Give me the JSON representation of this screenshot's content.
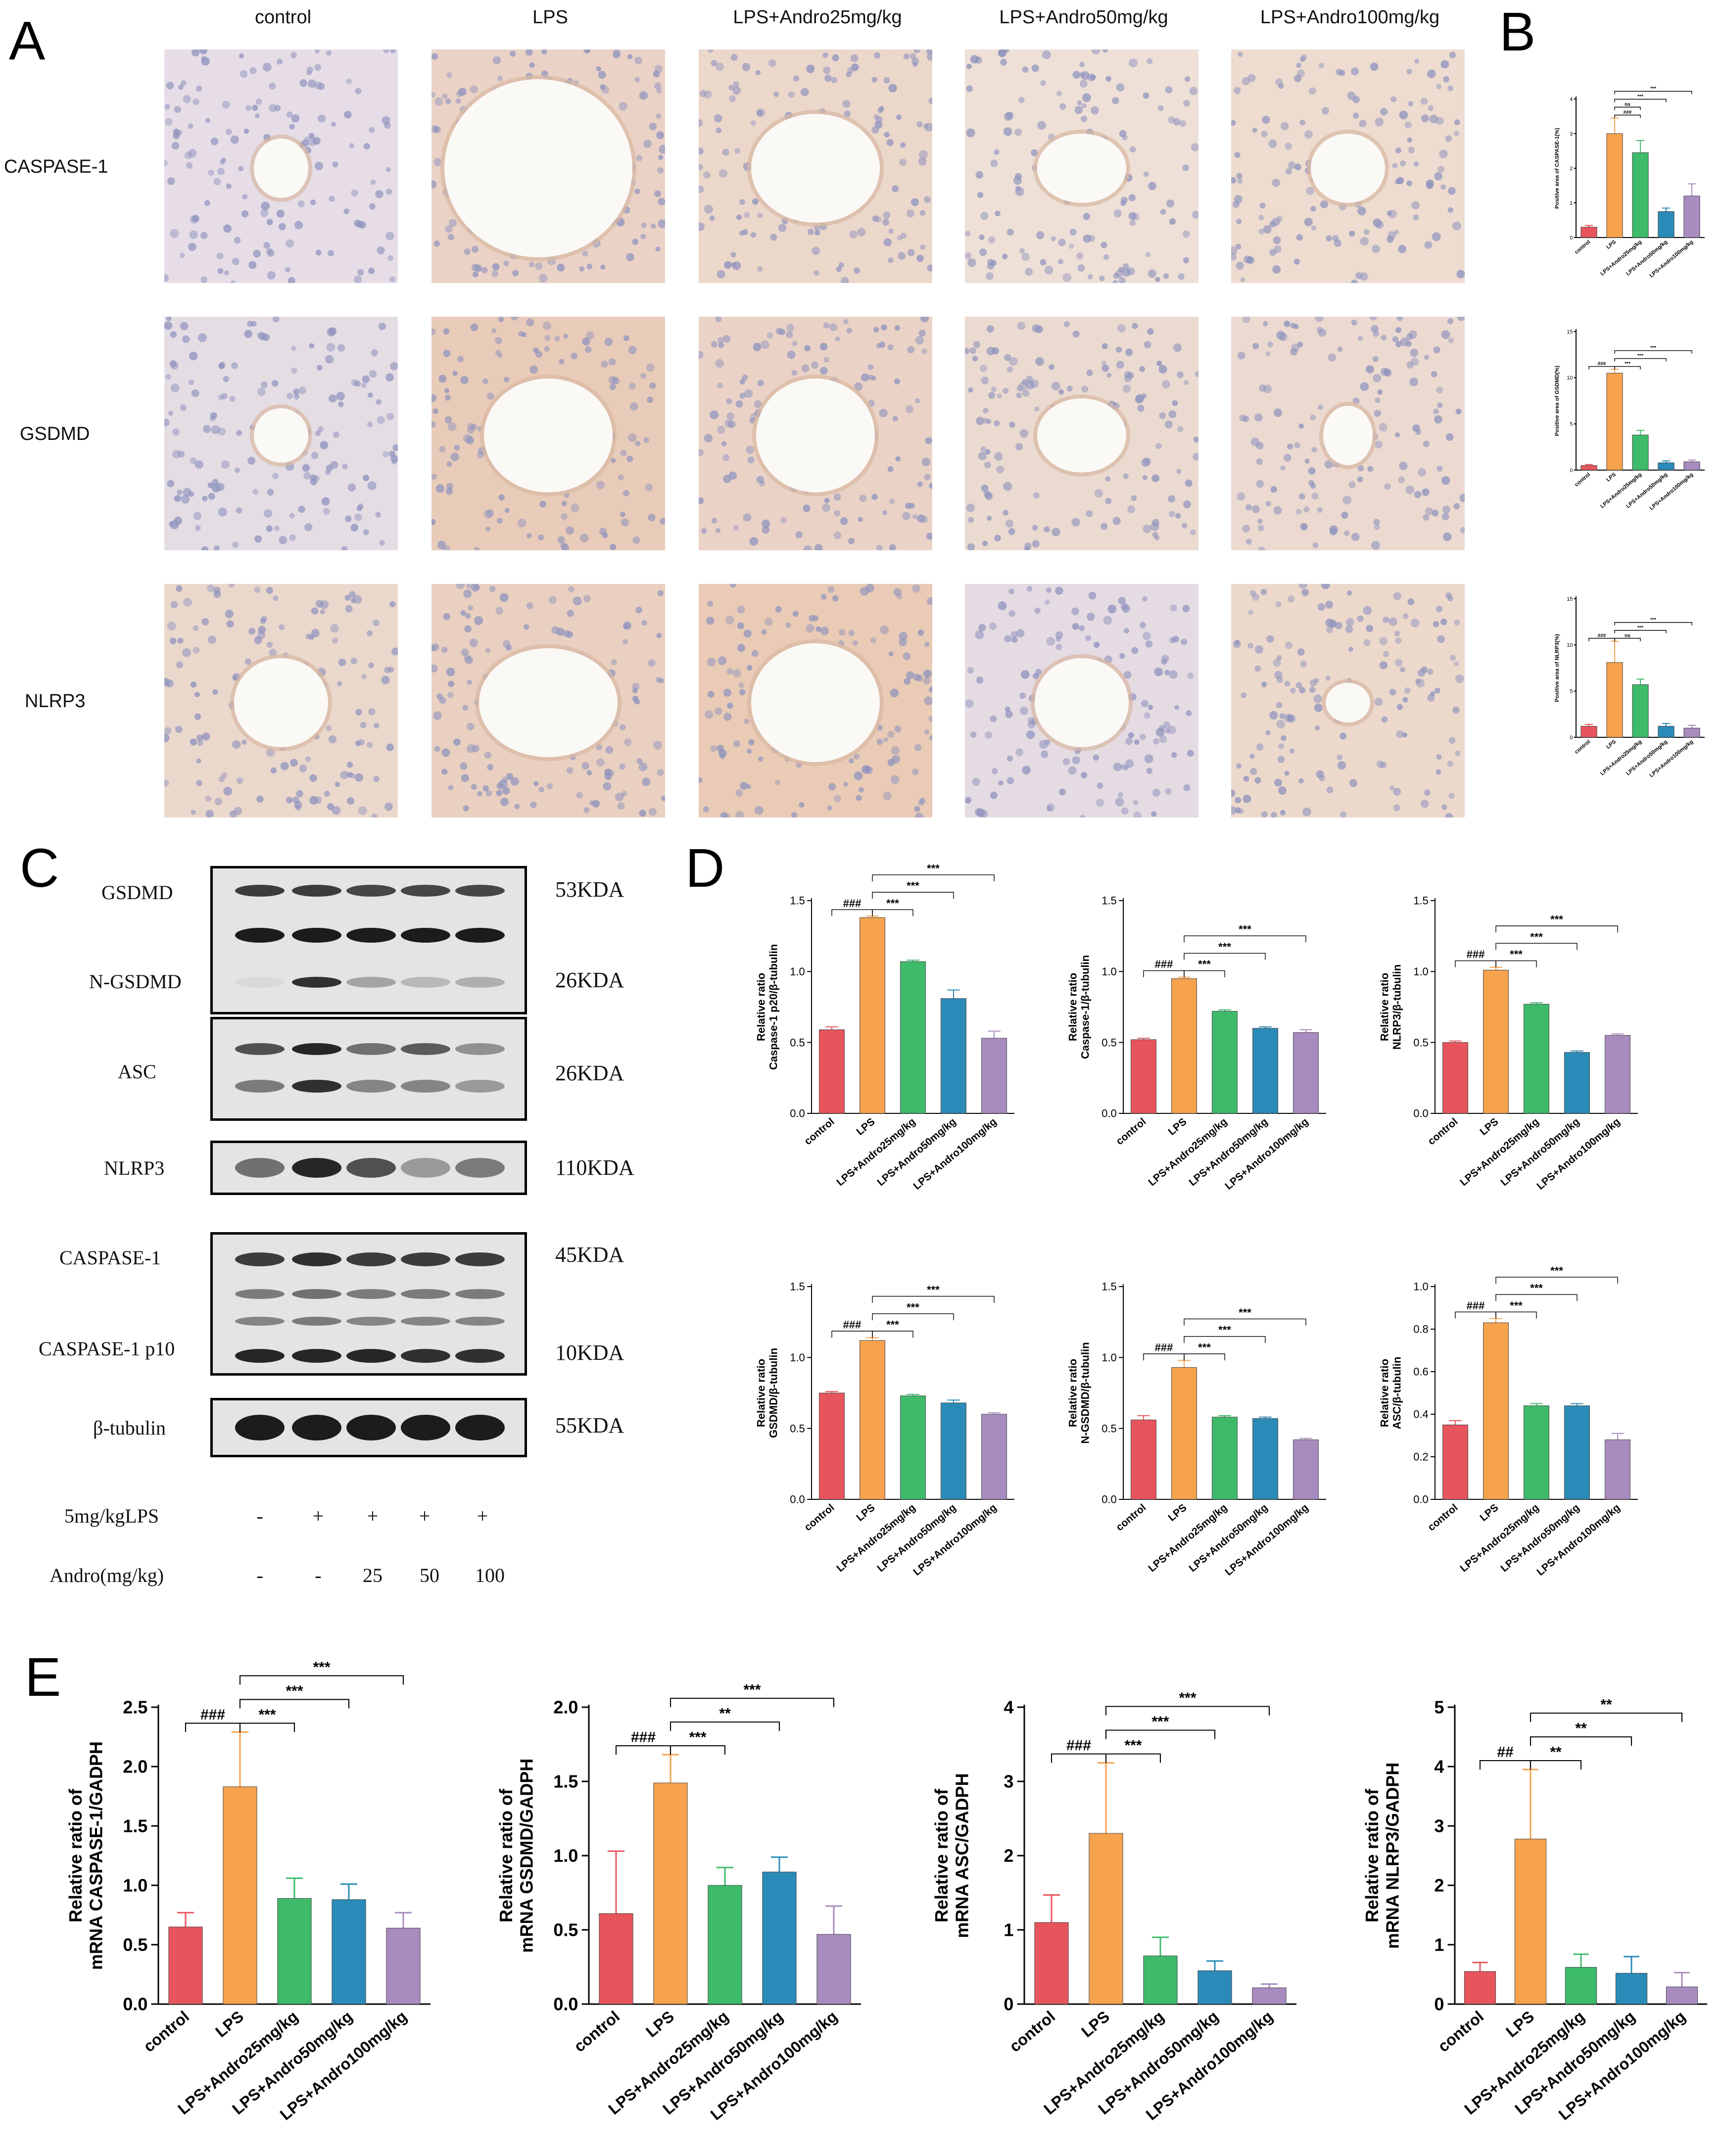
{
  "panels": {
    "A": "A",
    "B": "B",
    "C": "C",
    "D": "D",
    "E": "E"
  },
  "ihc": {
    "columns": [
      "control",
      "LPS",
      "LPS+Andro25mg/kg",
      "LPS+Andro50mg/kg",
      "LPS+Andro100mg/kg"
    ],
    "rows": [
      "CASPASE-1",
      "GSDMD",
      "NLRP3"
    ]
  },
  "western": {
    "labels": [
      "GSDMD",
      "N-GSDMD",
      "ASC",
      "NLRP3",
      "CASPASE-1",
      "CASPASE-1 p10",
      "β-tubulin"
    ],
    "sizes": [
      "53KDA",
      "26KDA",
      "26KDA",
      "110KDA",
      "45KDA",
      "10KDA",
      "55KDA"
    ],
    "condition_rows": [
      {
        "label": "5mg/kgLPS",
        "values": [
          "-",
          "+",
          "+",
          "+",
          "+"
        ]
      },
      {
        "label": "Andro(mg/kg)",
        "values": [
          "-",
          "-",
          "25",
          "50",
          "100"
        ]
      }
    ]
  },
  "colors": {
    "control": "#e8545c",
    "lps": "#f7a24d",
    "andro25": "#3dbb6a",
    "andro50": "#2a8bb8",
    "andro100": "#a88bbf"
  },
  "chart_data": [
    {
      "id": "B1",
      "type": "bar",
      "categories": [
        "control",
        "LPS",
        "LPS+Andro25mg/kg",
        "LPS+Andro50mg/kg",
        "LPS+Andro100mg/kg"
      ],
      "values": [
        0.3,
        3.0,
        2.45,
        0.75,
        1.2
      ],
      "errors": [
        0.05,
        0.45,
        0.35,
        0.1,
        0.35
      ],
      "ylabel": "Positive area of CASPASE-1(%)",
      "ylim": [
        0,
        4
      ],
      "yticks": [
        0,
        1,
        2,
        3,
        4
      ],
      "annotations": [
        {
          "from": 1,
          "to": 2,
          "text": "###"
        },
        {
          "from": 1,
          "to": 2,
          "text": "ns"
        },
        {
          "from": 1,
          "to": 3,
          "text": "***"
        },
        {
          "from": 1,
          "to": 4,
          "text": "***"
        }
      ]
    },
    {
      "id": "B2",
      "type": "bar",
      "categories": [
        "control",
        "LPS",
        "LPS+Andro25mg/kg",
        "LPS+Andro50mg/kg",
        "LPS+Andro100mg/kg"
      ],
      "values": [
        0.5,
        10.5,
        3.8,
        0.8,
        0.9
      ],
      "errors": [
        0.1,
        0.4,
        0.5,
        0.2,
        0.2
      ],
      "ylabel": "Positive area of GSDMD(%)",
      "ylim": [
        0,
        15
      ],
      "yticks": [
        0,
        5,
        10,
        15
      ],
      "annotations": [
        {
          "from": 0,
          "to": 1,
          "text": "###"
        },
        {
          "from": 1,
          "to": 2,
          "text": "***"
        },
        {
          "from": 1,
          "to": 3,
          "text": "***"
        },
        {
          "from": 1,
          "to": 4,
          "text": "***"
        }
      ]
    },
    {
      "id": "B3",
      "type": "bar",
      "categories": [
        "control",
        "LPS",
        "LPS+Andro25mg/kg",
        "LPS+Andro50mg/kg",
        "LPS+Andro100mg/kg"
      ],
      "values": [
        1.2,
        8.1,
        5.7,
        1.2,
        1.0
      ],
      "errors": [
        0.2,
        2.3,
        0.6,
        0.3,
        0.3
      ],
      "ylabel": "Positive area of NLRP3(%)",
      "ylim": [
        0,
        15
      ],
      "yticks": [
        0,
        5,
        10,
        15
      ],
      "annotations": [
        {
          "from": 0,
          "to": 1,
          "text": "###"
        },
        {
          "from": 1,
          "to": 2,
          "text": "ns"
        },
        {
          "from": 1,
          "to": 3,
          "text": "***"
        },
        {
          "from": 1,
          "to": 4,
          "text": "***"
        }
      ]
    },
    {
      "id": "D1",
      "type": "bar",
      "categories": [
        "control",
        "LPS",
        "LPS+Andro25mg/kg",
        "LPS+Andro50mg/kg",
        "LPS+Andro100mg/kg"
      ],
      "values": [
        0.59,
        1.38,
        1.07,
        0.81,
        0.53
      ],
      "errors": [
        0.02,
        0.01,
        0.01,
        0.06,
        0.05
      ],
      "ylabel": "Relative ratio\nCaspase-1 p20/β-tubulin",
      "ylim": [
        0,
        1.5
      ],
      "yticks": [
        0,
        0.5,
        1.0,
        1.5
      ],
      "annotations": [
        {
          "from": 0,
          "to": 1,
          "text": "###"
        },
        {
          "from": 1,
          "to": 2,
          "text": "***"
        },
        {
          "from": 1,
          "to": 3,
          "text": "***"
        },
        {
          "from": 1,
          "to": 4,
          "text": "***"
        }
      ]
    },
    {
      "id": "D2",
      "type": "bar",
      "categories": [
        "control",
        "LPS",
        "LPS+Andro25mg/kg",
        "LPS+Andro50mg/kg",
        "LPS+Andro100mg/kg"
      ],
      "values": [
        0.52,
        0.95,
        0.72,
        0.6,
        0.57
      ],
      "errors": [
        0.01,
        0.01,
        0.01,
        0.01,
        0.02
      ],
      "ylabel": "Relative ratio\nCaspase-1/β-tubulin",
      "ylim": [
        0,
        1.5
      ],
      "yticks": [
        0,
        0.5,
        1.0,
        1.5
      ],
      "annotations": [
        {
          "from": 0,
          "to": 1,
          "text": "###"
        },
        {
          "from": 1,
          "to": 2,
          "text": "***"
        },
        {
          "from": 1,
          "to": 3,
          "text": "***"
        },
        {
          "from": 1,
          "to": 4,
          "text": "***"
        }
      ]
    },
    {
      "id": "D3",
      "type": "bar",
      "categories": [
        "control",
        "LPS",
        "LPS+Andro25mg/kg",
        "LPS+Andro50mg/kg",
        "LPS+Andro100mg/kg"
      ],
      "values": [
        0.5,
        1.01,
        0.77,
        0.43,
        0.55
      ],
      "errors": [
        0.01,
        0.02,
        0.01,
        0.01,
        0.01
      ],
      "ylabel": "Relative ratio\nNLRP3/β-tubulin",
      "ylim": [
        0,
        1.5
      ],
      "yticks": [
        0,
        0.5,
        1.0,
        1.5
      ],
      "annotations": [
        {
          "from": 0,
          "to": 1,
          "text": "###"
        },
        {
          "from": 1,
          "to": 2,
          "text": "***"
        },
        {
          "from": 1,
          "to": 3,
          "text": "***"
        },
        {
          "from": 1,
          "to": 4,
          "text": "***"
        }
      ]
    },
    {
      "id": "D4",
      "type": "bar",
      "categories": [
        "control",
        "LPS",
        "LPS+Andro25mg/kg",
        "LPS+Andro50mg/kg",
        "LPS+Andro100mg/kg"
      ],
      "values": [
        0.75,
        1.12,
        0.73,
        0.68,
        0.6
      ],
      "errors": [
        0.01,
        0.02,
        0.01,
        0.02,
        0.01
      ],
      "ylabel": "Relative ratio\nGSDMD/β-tubulin",
      "ylim": [
        0,
        1.5
      ],
      "yticks": [
        0,
        0.5,
        1.0,
        1.5
      ],
      "annotations": [
        {
          "from": 0,
          "to": 1,
          "text": "###"
        },
        {
          "from": 1,
          "to": 2,
          "text": "***"
        },
        {
          "from": 1,
          "to": 3,
          "text": "***"
        },
        {
          "from": 1,
          "to": 4,
          "text": "***"
        }
      ]
    },
    {
      "id": "D5",
      "type": "bar",
      "categories": [
        "control",
        "LPS",
        "LPS+Andro25mg/kg",
        "LPS+Andro50mg/kg",
        "LPS+Andro100mg/kg"
      ],
      "values": [
        0.56,
        0.93,
        0.58,
        0.57,
        0.42
      ],
      "errors": [
        0.03,
        0.05,
        0.01,
        0.01,
        0.01
      ],
      "ylabel": "Relative ratio\nN-GSDMD/β-tubulin",
      "ylim": [
        0,
        1.5
      ],
      "yticks": [
        0,
        0.5,
        1.0,
        1.5
      ],
      "annotations": [
        {
          "from": 0,
          "to": 1,
          "text": "###"
        },
        {
          "from": 1,
          "to": 2,
          "text": "***"
        },
        {
          "from": 1,
          "to": 3,
          "text": "***"
        },
        {
          "from": 1,
          "to": 4,
          "text": "***"
        }
      ]
    },
    {
      "id": "D6",
      "type": "bar",
      "categories": [
        "control",
        "LPS",
        "LPS+Andro25mg/kg",
        "LPS+Andro50mg/kg",
        "LPS+Andro100mg/kg"
      ],
      "values": [
        0.35,
        0.83,
        0.44,
        0.44,
        0.28
      ],
      "errors": [
        0.02,
        0.02,
        0.01,
        0.01,
        0.03
      ],
      "ylabel": "Relative ratio\nASC/β-tubulin",
      "ylim": [
        0,
        1.0
      ],
      "yticks": [
        0,
        0.2,
        0.4,
        0.6,
        0.8,
        1.0
      ],
      "annotations": [
        {
          "from": 0,
          "to": 1,
          "text": "###"
        },
        {
          "from": 1,
          "to": 2,
          "text": "***"
        },
        {
          "from": 1,
          "to": 3,
          "text": "***"
        },
        {
          "from": 1,
          "to": 4,
          "text": "***"
        }
      ]
    },
    {
      "id": "E1",
      "type": "bar",
      "categories": [
        "control",
        "LPS",
        "LPS+Andro25mg/kg",
        "LPS+Andro50mg/kg",
        "LPS+Andro100mg/kg"
      ],
      "values": [
        0.65,
        1.83,
        0.89,
        0.88,
        0.64
      ],
      "errors": [
        0.12,
        0.46,
        0.17,
        0.13,
        0.13
      ],
      "ylabel": "Relative ratio of\nmRNA CASPASE-1/GADPH",
      "ylim": [
        0,
        2.5
      ],
      "yticks": [
        0,
        0.5,
        1.0,
        1.5,
        2.0,
        2.5
      ],
      "annotations": [
        {
          "from": 0,
          "to": 1,
          "text": "###"
        },
        {
          "from": 1,
          "to": 2,
          "text": "***"
        },
        {
          "from": 1,
          "to": 3,
          "text": "***"
        },
        {
          "from": 1,
          "to": 4,
          "text": "***"
        }
      ]
    },
    {
      "id": "E2",
      "type": "bar",
      "categories": [
        "control",
        "LPS",
        "LPS+Andro25mg/kg",
        "LPS+Andro50mg/kg",
        "LPS+Andro100mg/kg"
      ],
      "values": [
        0.61,
        1.49,
        0.8,
        0.89,
        0.47
      ],
      "errors": [
        0.42,
        0.19,
        0.12,
        0.1,
        0.19
      ],
      "ylabel": "Relative ratio of\nmRNA GSDMD/GADPH",
      "ylim": [
        0,
        2.0
      ],
      "yticks": [
        0,
        0.5,
        1.0,
        1.5,
        2.0
      ],
      "annotations": [
        {
          "from": 0,
          "to": 1,
          "text": "###"
        },
        {
          "from": 1,
          "to": 2,
          "text": "***"
        },
        {
          "from": 1,
          "to": 3,
          "text": "**"
        },
        {
          "from": 1,
          "to": 4,
          "text": "***"
        }
      ]
    },
    {
      "id": "E3",
      "type": "bar",
      "categories": [
        "control",
        "LPS",
        "LPS+Andro25mg/kg",
        "LPS+Andro50mg/kg",
        "LPS+Andro100mg/kg"
      ],
      "values": [
        1.1,
        2.3,
        0.65,
        0.45,
        0.22
      ],
      "errors": [
        0.37,
        0.95,
        0.25,
        0.13,
        0.05
      ],
      "ylabel": "Relative ratio of\nmRNA ASC/GADPH",
      "ylim": [
        0,
        4
      ],
      "yticks": [
        0,
        1,
        2,
        3,
        4
      ],
      "annotations": [
        {
          "from": 0,
          "to": 1,
          "text": "###"
        },
        {
          "from": 1,
          "to": 2,
          "text": "***"
        },
        {
          "from": 1,
          "to": 3,
          "text": "***"
        },
        {
          "from": 1,
          "to": 4,
          "text": "***"
        }
      ]
    },
    {
      "id": "E4",
      "type": "bar",
      "categories": [
        "control",
        "LPS",
        "LPS+Andro25mg/kg",
        "LPS+Andro50mg/kg",
        "LPS+Andro100mg/kg"
      ],
      "values": [
        0.55,
        2.78,
        0.62,
        0.52,
        0.29
      ],
      "errors": [
        0.15,
        1.17,
        0.22,
        0.28,
        0.24
      ],
      "ylabel": "Relative ratio of\nmRNA NLRP3/GADPH",
      "ylim": [
        0,
        5
      ],
      "yticks": [
        0,
        1,
        2,
        3,
        4,
        5
      ],
      "annotations": [
        {
          "from": 0,
          "to": 1,
          "text": "##"
        },
        {
          "from": 1,
          "to": 2,
          "text": "**"
        },
        {
          "from": 1,
          "to": 3,
          "text": "**"
        },
        {
          "from": 1,
          "to": 4,
          "text": "**"
        }
      ]
    }
  ]
}
